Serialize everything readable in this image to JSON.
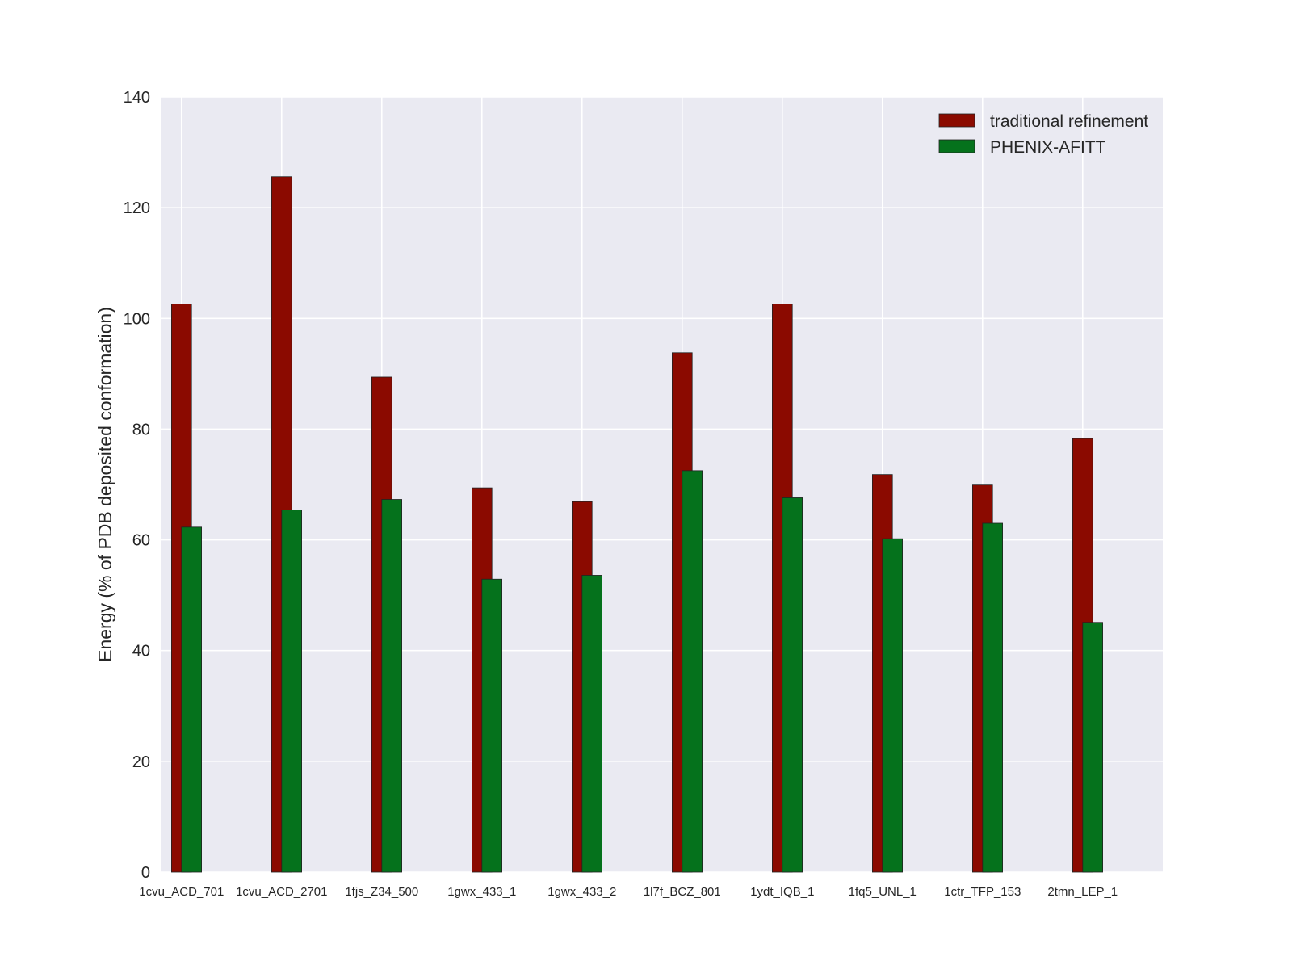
{
  "chart_data": {
    "type": "bar",
    "title": "",
    "xlabel": "",
    "ylabel": "Energy (% of PDB deposited conformation)",
    "ylim": [
      0,
      140
    ],
    "yticks": [
      "0",
      "20",
      "40",
      "60",
      "80",
      "100",
      "120",
      "140"
    ],
    "grid": true,
    "legend_position": "top-right",
    "categories": [
      "1cvu_ACD_701",
      "1cvu_ACD_2701",
      "1fjs_Z34_500",
      "1gwx_433_1",
      "1gwx_433_2",
      "1l7f_BCZ_801",
      "1ydt_IQB_1",
      "1fq5_UNL_1",
      "1ctr_TFP_153",
      "2tmn_LEP_1"
    ],
    "series": [
      {
        "name": "traditional refinement",
        "color": "#8b0a00",
        "values": [
          102.6,
          125.6,
          89.4,
          69.4,
          66.9,
          93.8,
          102.6,
          71.8,
          69.9,
          78.3
        ]
      },
      {
        "name": "PHENIX-AFITT",
        "color": "#05721c",
        "values": [
          62.3,
          65.4,
          67.3,
          52.9,
          53.6,
          72.5,
          67.6,
          60.2,
          63.0,
          45.1
        ]
      }
    ],
    "background": "#eaeaf2"
  }
}
